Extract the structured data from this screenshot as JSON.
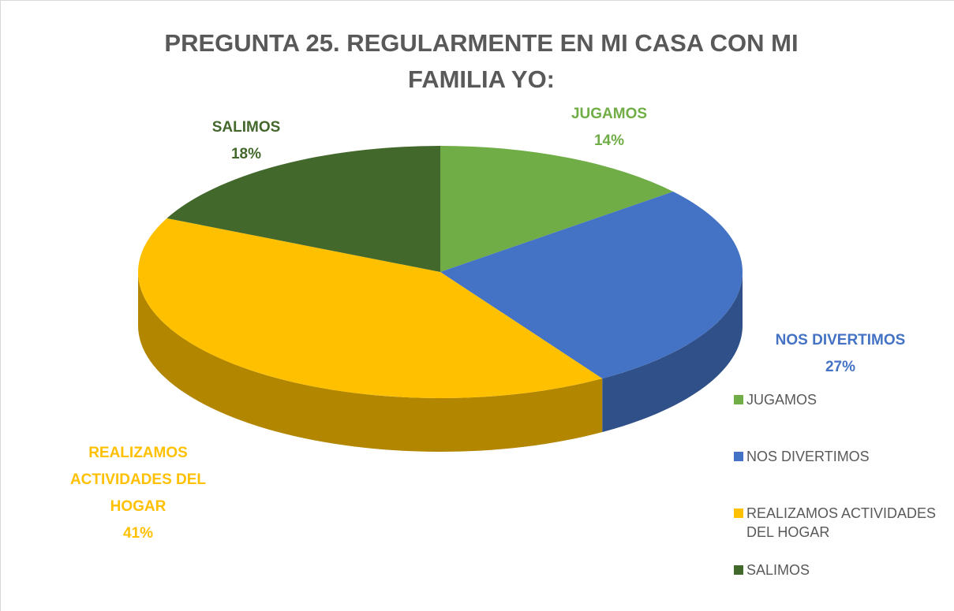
{
  "chart_data": {
    "type": "pie3d",
    "title": "PREGUNTA 25. REGULARMENTE EN MI CASA CON MI FAMILIA YO:",
    "categories": [
      "JUGAMOS",
      "NOS DIVERTIMOS",
      "REALIZAMOS ACTIVIDADES DEL HOGAR",
      "SALIMOS"
    ],
    "values": [
      14,
      27,
      41,
      18
    ],
    "value_labels": [
      "14%",
      "27%",
      "41%",
      "18%"
    ],
    "colors": [
      "#70ad47",
      "#4472c4",
      "#ffc000",
      "#43682b"
    ],
    "legend": "right"
  }
}
